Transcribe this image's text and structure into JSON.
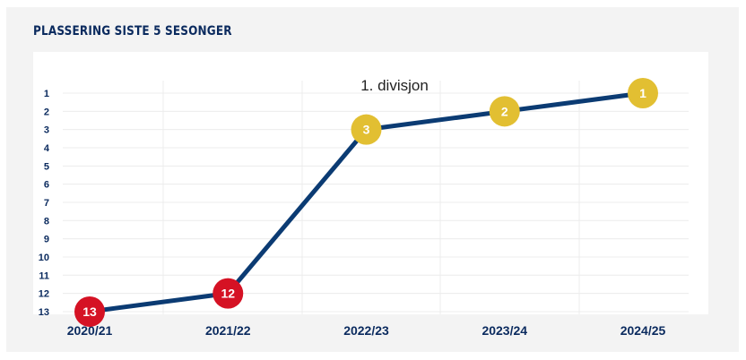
{
  "title": "PLASSERING SISTE 5 SESONGER",
  "annotation": "1. divisjon",
  "chart_data": {
    "type": "line",
    "title": "PLASSERING SISTE 5 SESONGER",
    "xlabel": "",
    "ylabel": "",
    "categories": [
      "2020/21",
      "2021/22",
      "2022/23",
      "2023/24",
      "2024/25"
    ],
    "series": [
      {
        "values": [
          13,
          12,
          3,
          2,
          1
        ]
      }
    ],
    "yticks": [
      "1",
      "2",
      "3",
      "4",
      "5",
      "6",
      "7",
      "8",
      "9",
      "10",
      "11",
      "12",
      "13"
    ],
    "ylim": [
      1,
      13
    ],
    "y_inverted": true,
    "grid": true,
    "line_color": "#0b3b73",
    "marker_colors": {
      "relegation_zone": "#d51224",
      "top_zone": "#e2bf32"
    },
    "point_colors": [
      "#d51224",
      "#d51224",
      "#e2bf32",
      "#e2bf32",
      "#e2bf32"
    ],
    "annotations": [
      "1. divisjon"
    ]
  }
}
